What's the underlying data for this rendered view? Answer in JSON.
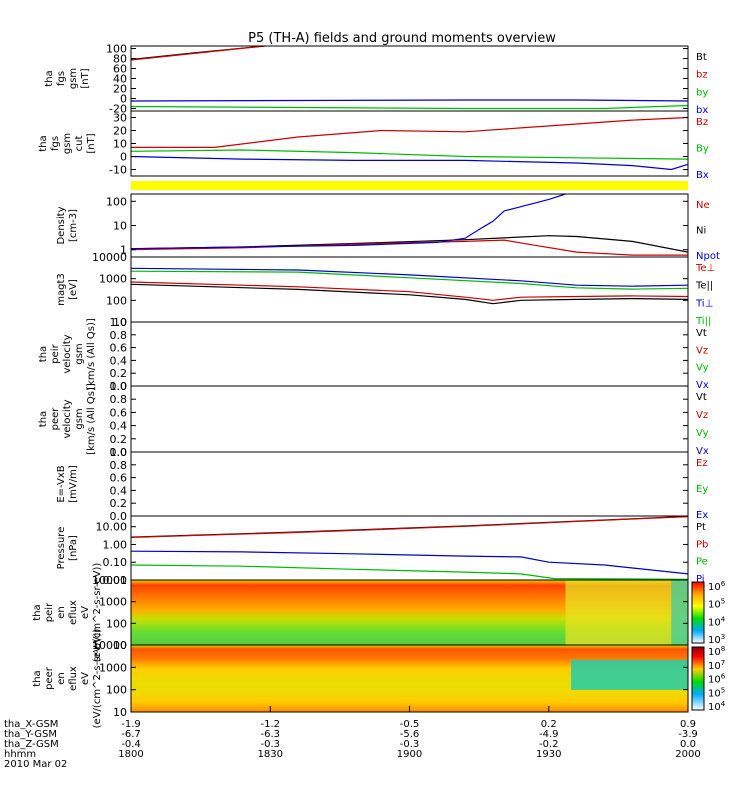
{
  "title": "P5 (TH-A) fields and ground moments overview",
  "chart_data": [
    {
      "type": "line",
      "panel": "fgs_gsm",
      "ylabel": [
        "tha",
        "fgs",
        "gsm",
        "[nT]"
      ],
      "yticks": [
        -20,
        0,
        20,
        40,
        60,
        80,
        100
      ],
      "ylim": [
        -25,
        105
      ],
      "legend": [
        {
          "label": "Bt",
          "color": "#000000"
        },
        {
          "label": "bz",
          "color": "#cc0000"
        },
        {
          "label": "by",
          "color": "#00bb00"
        },
        {
          "label": "bx",
          "color": "#0000cc"
        }
      ],
      "series": [
        {
          "name": "Bt",
          "color": "#000000",
          "points": [
            [
              0,
              78
            ],
            [
              0.12,
              92
            ],
            [
              0.24,
              105
            ]
          ]
        },
        {
          "name": "bz",
          "color": "#cc0000",
          "points": [
            [
              0,
              77
            ],
            [
              0.12,
              91
            ],
            [
              0.24,
              105
            ]
          ]
        },
        {
          "name": "bx",
          "color": "#0000cc",
          "points": [
            [
              0,
              -5
            ],
            [
              0.3,
              -4
            ],
            [
              0.6,
              -3
            ],
            [
              0.8,
              -3
            ],
            [
              1,
              -5
            ]
          ]
        },
        {
          "name": "by",
          "color": "#00bb00",
          "points": [
            [
              0,
              -16
            ],
            [
              0.3,
              -18
            ],
            [
              0.6,
              -20
            ],
            [
              0.85,
              -20
            ],
            [
              1,
              -14
            ]
          ]
        }
      ]
    },
    {
      "type": "line",
      "panel": "fgs_gsm_cut",
      "ylabel": [
        "tha",
        "fgs",
        "gsm",
        "cut",
        "[nT]"
      ],
      "yticks": [
        -10,
        0,
        10,
        20,
        30
      ],
      "ylim": [
        -15,
        35
      ],
      "legend": [
        {
          "label": "Bz",
          "color": "#cc0000"
        },
        {
          "label": "By",
          "color": "#00bb00"
        },
        {
          "label": "Bx",
          "color": "#0000cc"
        }
      ],
      "series": [
        {
          "name": "Bz",
          "color": "#cc0000",
          "points": [
            [
              0,
              7
            ],
            [
              0.15,
              7
            ],
            [
              0.3,
              15
            ],
            [
              0.45,
              20
            ],
            [
              0.6,
              19
            ],
            [
              0.7,
              22
            ],
            [
              0.8,
              25
            ],
            [
              0.9,
              28
            ],
            [
              1,
              30
            ]
          ]
        },
        {
          "name": "By",
          "color": "#00bb00",
          "points": [
            [
              0,
              4
            ],
            [
              0.2,
              5
            ],
            [
              0.4,
              3
            ],
            [
              0.6,
              0
            ],
            [
              0.8,
              -1
            ],
            [
              1,
              -2
            ]
          ]
        },
        {
          "name": "Bx",
          "color": "#0000cc",
          "points": [
            [
              0,
              0
            ],
            [
              0.2,
              -2
            ],
            [
              0.4,
              -3
            ],
            [
              0.6,
              -3
            ],
            [
              0.8,
              -5
            ],
            [
              0.9,
              -7
            ],
            [
              0.97,
              -10
            ],
            [
              1,
              -6
            ]
          ]
        }
      ]
    },
    {
      "type": "line",
      "panel": "density",
      "yscale": "log",
      "ylabel": [
        "Density",
        "[cm-3]"
      ],
      "yticks": [
        1,
        10,
        100
      ],
      "ytick_labels": [
        "1",
        "10",
        "100"
      ],
      "ylim": [
        0.5,
        200
      ],
      "legend": [
        {
          "label": "Ne",
          "color": "#cc0000"
        },
        {
          "label": "Ni",
          "color": "#000000"
        },
        {
          "label": "Npot",
          "color": "#0000cc"
        }
      ],
      "series": [
        {
          "name": "Ni",
          "color": "#000000",
          "points": [
            [
              0,
              1.1
            ],
            [
              0.2,
              1.3
            ],
            [
              0.4,
              1.8
            ],
            [
              0.6,
              2.6
            ],
            [
              0.75,
              3.8
            ],
            [
              0.8,
              3.5
            ],
            [
              0.9,
              2.2
            ],
            [
              1,
              0.8
            ]
          ]
        },
        {
          "name": "Ne",
          "color": "#cc0000",
          "points": [
            [
              0,
              1
            ],
            [
              0.2,
              1.2
            ],
            [
              0.4,
              1.7
            ],
            [
              0.6,
              2.2
            ],
            [
              0.67,
              2.5
            ],
            [
              0.72,
              1.6
            ],
            [
              0.8,
              0.8
            ],
            [
              0.9,
              0.6
            ],
            [
              1,
              0.6
            ]
          ]
        },
        {
          "name": "Npot",
          "color": "#0000cc",
          "points": [
            [
              0,
              1.1
            ],
            [
              0.2,
              1.3
            ],
            [
              0.4,
              1.5
            ],
            [
              0.55,
              2
            ],
            [
              0.6,
              3
            ],
            [
              0.63,
              8
            ],
            [
              0.65,
              15
            ],
            [
              0.67,
              40
            ],
            [
              0.7,
              60
            ],
            [
              0.75,
              120
            ],
            [
              0.78,
              200
            ]
          ]
        }
      ]
    },
    {
      "type": "line",
      "panel": "temperature",
      "yscale": "log",
      "ylabel": [
        "magt3",
        "[eV]"
      ],
      "yticks": [
        10,
        100,
        1000,
        10000
      ],
      "ytick_labels": [
        "10",
        "100",
        "1000",
        "10000"
      ],
      "ylim": [
        10,
        10000
      ],
      "legend": [
        {
          "label": "Te⊥",
          "color": "#cc0000"
        },
        {
          "label": "Te||",
          "color": "#000000"
        },
        {
          "label": "Ti⊥",
          "color": "#0000cc"
        },
        {
          "label": "Ti||",
          "color": "#00bb00"
        }
      ],
      "series": [
        {
          "name": "Ti⊥",
          "color": "#0000cc",
          "points": [
            [
              0,
              3000
            ],
            [
              0.3,
              2500
            ],
            [
              0.5,
              1500
            ],
            [
              0.7,
              800
            ],
            [
              0.8,
              500
            ],
            [
              0.9,
              450
            ],
            [
              1,
              500
            ]
          ]
        },
        {
          "name": "Ti||",
          "color": "#00bb00",
          "points": [
            [
              0,
              2200
            ],
            [
              0.3,
              2000
            ],
            [
              0.5,
              1100
            ],
            [
              0.7,
              600
            ],
            [
              0.8,
              380
            ],
            [
              0.9,
              330
            ],
            [
              1,
              360
            ]
          ]
        },
        {
          "name": "Te⊥",
          "color": "#cc0000",
          "points": [
            [
              0,
              700
            ],
            [
              0.3,
              420
            ],
            [
              0.5,
              250
            ],
            [
              0.6,
              140
            ],
            [
              0.65,
              100
            ],
            [
              0.7,
              140
            ],
            [
              0.8,
              150
            ],
            [
              0.9,
              160
            ],
            [
              1,
              150
            ]
          ]
        },
        {
          "name": "Te||",
          "color": "#000000",
          "points": [
            [
              0,
              550
            ],
            [
              0.3,
              320
            ],
            [
              0.5,
              180
            ],
            [
              0.6,
              110
            ],
            [
              0.65,
              70
            ],
            [
              0.7,
              100
            ],
            [
              0.8,
              110
            ],
            [
              0.9,
              120
            ],
            [
              1,
              110
            ]
          ]
        }
      ]
    },
    {
      "type": "line",
      "panel": "peir_velocity",
      "ylabel": [
        "tha",
        "peir",
        "velocity",
        "gsm",
        "[km/s (All Qs)]"
      ],
      "yticks": [
        0.0,
        0.2,
        0.4,
        0.6,
        0.8,
        1.0
      ],
      "ytick_labels": [
        "0.0",
        "0.2",
        "0.4",
        "0.6",
        "0.8",
        "1.0"
      ],
      "ylim": [
        0,
        1
      ],
      "legend": [
        {
          "label": "Vt",
          "color": "#000000"
        },
        {
          "label": "Vz",
          "color": "#cc0000"
        },
        {
          "label": "Vy",
          "color": "#00bb00"
        },
        {
          "label": "Vx",
          "color": "#0000cc"
        }
      ],
      "series": []
    },
    {
      "type": "line",
      "panel": "peer_velocity",
      "ylabel": [
        "tha",
        "peer",
        "velocity",
        "gsm",
        "[km/s (All Qs)]"
      ],
      "yticks": [
        0.0,
        0.2,
        0.4,
        0.6,
        0.8,
        1.0
      ],
      "ytick_labels": [
        "0.0",
        "0.2",
        "0.4",
        "0.6",
        "0.8",
        "1.0"
      ],
      "ylim": [
        0,
        1
      ],
      "legend": [
        {
          "label": "Vt",
          "color": "#000000"
        },
        {
          "label": "Vz",
          "color": "#cc0000"
        },
        {
          "label": "Vy",
          "color": "#00bb00"
        },
        {
          "label": "Vx",
          "color": "#0000cc"
        }
      ],
      "series": []
    },
    {
      "type": "line",
      "panel": "efield",
      "ylabel": [
        "E=-VxB",
        "[mV/m]"
      ],
      "yticks": [
        0.0,
        0.2,
        0.4,
        0.6,
        0.8,
        1.0
      ],
      "ytick_labels": [
        "0.0",
        "0.2",
        "0.4",
        "0.6",
        "0.8",
        "1.0"
      ],
      "ylim": [
        0,
        1
      ],
      "legend": [
        {
          "label": "Ez",
          "color": "#cc0000"
        },
        {
          "label": "Ey",
          "color": "#00bb00"
        },
        {
          "label": "Ex",
          "color": "#0000cc"
        }
      ],
      "series": []
    },
    {
      "type": "line",
      "panel": "pressure",
      "yscale": "log",
      "ylabel": [
        "Pressure",
        "[nPa]"
      ],
      "yticks": [
        0.01,
        0.1,
        1,
        10
      ],
      "ytick_labels": [
        "0.01",
        "0.10",
        "1.00",
        "10.00"
      ],
      "ylim": [
        0.01,
        40
      ],
      "legend": [
        {
          "label": "Pt",
          "color": "#000000"
        },
        {
          "label": "Pb",
          "color": "#cc0000"
        },
        {
          "label": "Pe",
          "color": "#00bb00"
        },
        {
          "label": "Pi",
          "color": "#0000cc"
        }
      ],
      "series": [
        {
          "name": "Pt",
          "color": "#000000",
          "points": [
            [
              0,
              2.6
            ],
            [
              0.3,
              5
            ],
            [
              0.6,
              11
            ],
            [
              0.9,
              28
            ],
            [
              1,
              38
            ]
          ]
        },
        {
          "name": "Pb",
          "color": "#cc0000",
          "points": [
            [
              0,
              2.5
            ],
            [
              0.3,
              4.8
            ],
            [
              0.6,
              10.5
            ],
            [
              0.9,
              27
            ],
            [
              1,
              37
            ]
          ]
        },
        {
          "name": "Pi",
          "color": "#0000cc",
          "points": [
            [
              0,
              0.42
            ],
            [
              0.2,
              0.38
            ],
            [
              0.4,
              0.3
            ],
            [
              0.6,
              0.22
            ],
            [
              0.7,
              0.2
            ],
            [
              0.75,
              0.1
            ],
            [
              0.85,
              0.07
            ],
            [
              1,
              0.022
            ]
          ]
        },
        {
          "name": "Pe",
          "color": "#00bb00",
          "points": [
            [
              0,
              0.07
            ],
            [
              0.2,
              0.06
            ],
            [
              0.4,
              0.04
            ],
            [
              0.6,
              0.028
            ],
            [
              0.7,
              0.022
            ],
            [
              0.76,
              0.012
            ],
            [
              1,
              0.011
            ]
          ]
        }
      ]
    },
    {
      "type": "heatmap",
      "panel": "peir_energy_spectrogram",
      "yscale": "log",
      "ylabel": [
        "tha",
        "peir",
        "en",
        "eflux",
        "eV",
        "(eV/(cm^2-s-sr-eV))"
      ],
      "yticks": [
        10,
        100,
        1000,
        10000
      ],
      "ytick_labels": [
        "10",
        "100",
        "1000",
        "10000"
      ],
      "colorbar": {
        "ticks": [
          "10^3",
          "10^4",
          "10^5",
          "10^6"
        ],
        "range": [
          "10^3",
          "10^6"
        ]
      }
    },
    {
      "type": "heatmap",
      "panel": "peer_energy_spectrogram",
      "yscale": "log",
      "ylabel": [
        "tha",
        "peer",
        "en",
        "eflux",
        "eV",
        "(eV/(cm^2-s-sr-eV))"
      ],
      "yticks": [
        10,
        100,
        1000,
        10000
      ],
      "ytick_labels": [
        "10",
        "100",
        "1000",
        "10000"
      ],
      "colorbar": {
        "ticks": [
          "10^4",
          "10^5",
          "10^6",
          "10^7",
          "10^8"
        ],
        "range": [
          "10^4",
          "10^8"
        ]
      }
    }
  ],
  "xaxis": {
    "labels": [
      "tha_X-GSM",
      "tha_Y-GSM",
      "tha_Z-GSM",
      "hhmm",
      "2010 Mar 02"
    ],
    "ticks": [
      {
        "x": "-1.9",
        "y": "-6.7",
        "z": "-0.4",
        "t": "1800"
      },
      {
        "x": "-1.2",
        "y": "-6.3",
        "z": "-0.3",
        "t": "1830"
      },
      {
        "x": "-0.5",
        "y": "-5.6",
        "z": "-0.3",
        "t": "1900"
      },
      {
        "x": "0.2",
        "y": "-4.9",
        "z": "-0.2",
        "t": "1930"
      },
      {
        "x": "0.9",
        "y": "-3.9",
        "z": "0.0",
        "t": "2000"
      }
    ]
  }
}
